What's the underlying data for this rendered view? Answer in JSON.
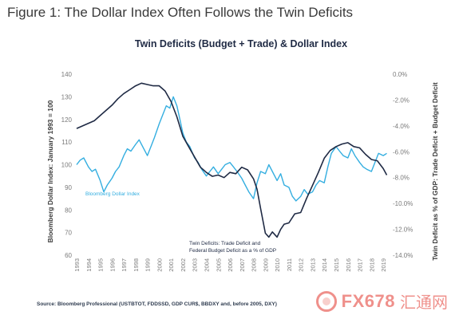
{
  "figure_title": "Figure 1: The Dollar Index Often Follows the Twin Deficits",
  "source_note": "Source: Bloomberg Professional (USTBTOT, FDDSSD, GDP CUR$, BBDXY and, before 2005, DXY)",
  "watermark": {
    "brand": "FX678",
    "cn": "汇通网"
  },
  "colors": {
    "dollar": "#34aee0",
    "deficit": "#1f2a44",
    "title": "#1f2a44",
    "axis_text": "#7a7a7a"
  },
  "chart_data": {
    "type": "line",
    "title": "Twin Deficits (Budget + Trade) & Dollar Index",
    "ylabel_left": "Bloomberg Dollar Index: January 1993 = 100",
    "ylabel_right": "Twin Deficit as % of GDP: Trade Deficit + Budget Deficit",
    "ylim_left": [
      60,
      140
    ],
    "ylim_right": [
      -14,
      0
    ],
    "left_ticks": [
      "60",
      "70",
      "80",
      "90",
      "100",
      "110",
      "120",
      "130",
      "140"
    ],
    "right_ticks": [
      "-14.0%",
      "-12.0%",
      "-10.0%",
      "-8.0%",
      "-6.0%",
      "-4.0%",
      "-2.0%",
      "0.0%"
    ],
    "x_ticks": [
      "1993",
      "1994",
      "1995",
      "1996",
      "1997",
      "1998",
      "1999",
      "2000",
      "2001",
      "2002",
      "2003",
      "2004",
      "2005",
      "2006",
      "2007",
      "2008",
      "2009",
      "2010",
      "2011",
      "2012",
      "2013",
      "2014",
      "2015",
      "2016",
      "2017",
      "2018",
      "2019"
    ],
    "xlim": [
      1993,
      2019.4
    ],
    "grid": false,
    "series": [
      {
        "name": "Bloomberg Dollar Index",
        "axis": "left",
        "x": [
          1993.0,
          1993.3,
          1993.6,
          1994.0,
          1994.3,
          1994.6,
          1995.0,
          1995.3,
          1995.6,
          1996.0,
          1996.3,
          1996.6,
          1997.0,
          1997.3,
          1997.6,
          1998.0,
          1998.3,
          1998.6,
          1999.0,
          1999.3,
          1999.6,
          2000.0,
          2000.3,
          2000.6,
          2000.9,
          2001.2,
          2001.5,
          2001.8,
          2002.0,
          2002.3,
          2002.6,
          2003.0,
          2003.3,
          2003.6,
          2004.0,
          2004.3,
          2004.6,
          2005.0,
          2005.3,
          2005.6,
          2006.0,
          2006.3,
          2006.6,
          2007.0,
          2007.3,
          2007.6,
          2008.0,
          2008.3,
          2008.6,
          2009.0,
          2009.3,
          2009.6,
          2010.0,
          2010.3,
          2010.6,
          2011.0,
          2011.3,
          2011.6,
          2012.0,
          2012.3,
          2012.6,
          2013.0,
          2013.3,
          2013.6,
          2014.0,
          2014.3,
          2014.6,
          2015.0,
          2015.3,
          2015.6,
          2016.0,
          2016.3,
          2016.6,
          2017.0,
          2017.3,
          2017.6,
          2018.0,
          2018.3,
          2018.6,
          2019.0,
          2019.3
        ],
        "values": [
          100,
          102,
          103,
          99,
          97,
          98,
          93,
          88,
          91,
          94,
          97,
          99,
          104,
          107,
          106,
          109,
          111,
          108,
          104,
          108,
          112,
          118,
          122,
          126,
          125,
          130,
          126,
          119,
          114,
          110,
          108,
          103,
          101,
          98,
          95,
          97,
          99,
          96,
          98,
          100,
          101,
          99,
          97,
          94,
          91,
          88,
          85,
          92,
          97,
          96,
          100,
          97,
          93,
          96,
          91,
          90,
          86,
          84,
          86,
          89,
          87,
          88,
          91,
          93,
          92,
          99,
          105,
          108,
          106,
          104,
          103,
          107,
          104,
          101,
          99,
          98,
          97,
          101,
          105,
          104,
          105
        ],
        "color": "#34aee0"
      },
      {
        "name": "Twin Deficits: Trade Deficit and Federal Budget Deficit as a % of GDP",
        "axis": "right",
        "x": [
          1993.0,
          1993.5,
          1994.0,
          1994.5,
          1995.0,
          1995.5,
          1996.0,
          1996.5,
          1997.0,
          1997.5,
          1998.0,
          1998.5,
          1999.0,
          1999.5,
          2000.0,
          2000.5,
          2001.0,
          2001.5,
          2002.0,
          2002.5,
          2003.0,
          2003.5,
          2004.0,
          2004.5,
          2005.0,
          2005.5,
          2006.0,
          2006.5,
          2007.0,
          2007.5,
          2008.0,
          2008.3,
          2008.6,
          2009.0,
          2009.3,
          2009.6,
          2010.0,
          2010.3,
          2010.6,
          2011.0,
          2011.5,
          2012.0,
          2012.5,
          2013.0,
          2013.5,
          2014.0,
          2014.5,
          2015.0,
          2015.5,
          2016.0,
          2016.5,
          2017.0,
          2017.5,
          2018.0,
          2018.5,
          2019.0,
          2019.3
        ],
        "values": [
          -4.2,
          -4.0,
          -3.8,
          -3.6,
          -3.2,
          -2.8,
          -2.4,
          -1.9,
          -1.5,
          -1.2,
          -0.9,
          -0.7,
          -0.8,
          -0.9,
          -0.9,
          -1.3,
          -2.1,
          -3.3,
          -4.8,
          -5.6,
          -6.4,
          -7.2,
          -7.6,
          -7.9,
          -7.8,
          -8.0,
          -7.6,
          -7.7,
          -7.2,
          -7.4,
          -8.1,
          -8.9,
          -10.4,
          -12.3,
          -12.6,
          -12.2,
          -12.6,
          -12.0,
          -11.6,
          -11.5,
          -10.8,
          -10.7,
          -9.6,
          -8.6,
          -7.6,
          -6.5,
          -5.9,
          -5.6,
          -5.4,
          -5.3,
          -5.6,
          -5.7,
          -6.2,
          -6.6,
          -6.7,
          -7.3,
          -7.8
        ],
        "color": "#1f2a44"
      }
    ],
    "annotations": [
      {
        "text": "Bloomberg Dollar Index",
        "series": "Bloomberg Dollar Index"
      },
      {
        "text": "Twin Deficits: Trade Deficit and",
        "series": "Twin Deficits"
      },
      {
        "text": "Federal Budget Deficit as a % of GDP",
        "series": "Twin Deficits"
      }
    ]
  }
}
